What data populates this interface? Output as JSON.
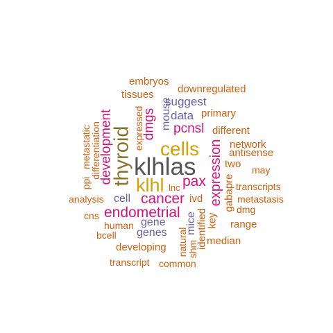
{
  "palette": {
    "gray": "#555555",
    "gold": "#d4a000",
    "olive": "#8b7329",
    "magenta": "#d6127a",
    "purple": "#6a5fa6",
    "orange": "#d35f0a"
  },
  "words": [
    {
      "text": "klhlas",
      "color": "gray"
    },
    {
      "text": "thyroid",
      "color": "olive"
    },
    {
      "text": "cells",
      "color": "gold"
    },
    {
      "text": "klhl",
      "color": "gold"
    },
    {
      "text": "cancer",
      "color": "magenta"
    },
    {
      "text": "pax",
      "color": "magenta"
    },
    {
      "text": "endometrial",
      "color": "magenta"
    },
    {
      "text": "expression",
      "color": "magenta"
    },
    {
      "text": "development",
      "color": "magenta"
    },
    {
      "text": "dmgs",
      "color": "magenta"
    },
    {
      "text": "pcnsl",
      "color": "magenta"
    },
    {
      "text": "suggest",
      "color": "purple"
    },
    {
      "text": "data",
      "color": "purple"
    },
    {
      "text": "mouse",
      "color": "purple"
    },
    {
      "text": "gene",
      "color": "purple"
    },
    {
      "text": "genes",
      "color": "purple"
    },
    {
      "text": "cell",
      "color": "purple"
    },
    {
      "text": "mice",
      "color": "purple"
    },
    {
      "text": "embryos",
      "color": "orange"
    },
    {
      "text": "downregulated",
      "color": "orange"
    },
    {
      "text": "tissues",
      "color": "orange"
    },
    {
      "text": "primary",
      "color": "orange"
    },
    {
      "text": "different",
      "color": "orange"
    },
    {
      "text": "network",
      "color": "orange"
    },
    {
      "text": "antisense",
      "color": "orange"
    },
    {
      "text": "two",
      "color": "orange"
    },
    {
      "text": "may",
      "color": "orange"
    },
    {
      "text": "transcripts",
      "color": "orange"
    },
    {
      "text": "metastasis",
      "color": "orange"
    },
    {
      "text": "dmg",
      "color": "orange"
    },
    {
      "text": "range",
      "color": "orange"
    },
    {
      "text": "median",
      "color": "orange"
    },
    {
      "text": "gabapre",
      "color": "orange"
    },
    {
      "text": "key",
      "color": "orange"
    },
    {
      "text": "identified",
      "color": "orange"
    },
    {
      "text": "natural",
      "color": "orange"
    },
    {
      "text": "shm",
      "color": "orange"
    },
    {
      "text": "ivd",
      "color": "orange"
    },
    {
      "text": "lnc",
      "color": "orange"
    },
    {
      "text": "expressed",
      "color": "orange"
    },
    {
      "text": "metastatic",
      "color": "orange"
    },
    {
      "text": "ppi",
      "color": "orange"
    },
    {
      "text": "differentiation",
      "color": "orange"
    },
    {
      "text": "analysis",
      "color": "orange"
    },
    {
      "text": "cns",
      "color": "orange"
    },
    {
      "text": "human",
      "color": "orange"
    },
    {
      "text": "bcell",
      "color": "orange"
    },
    {
      "text": "developing",
      "color": "orange"
    },
    {
      "text": "transcript",
      "color": "orange"
    },
    {
      "text": "common",
      "color": "orange"
    }
  ]
}
